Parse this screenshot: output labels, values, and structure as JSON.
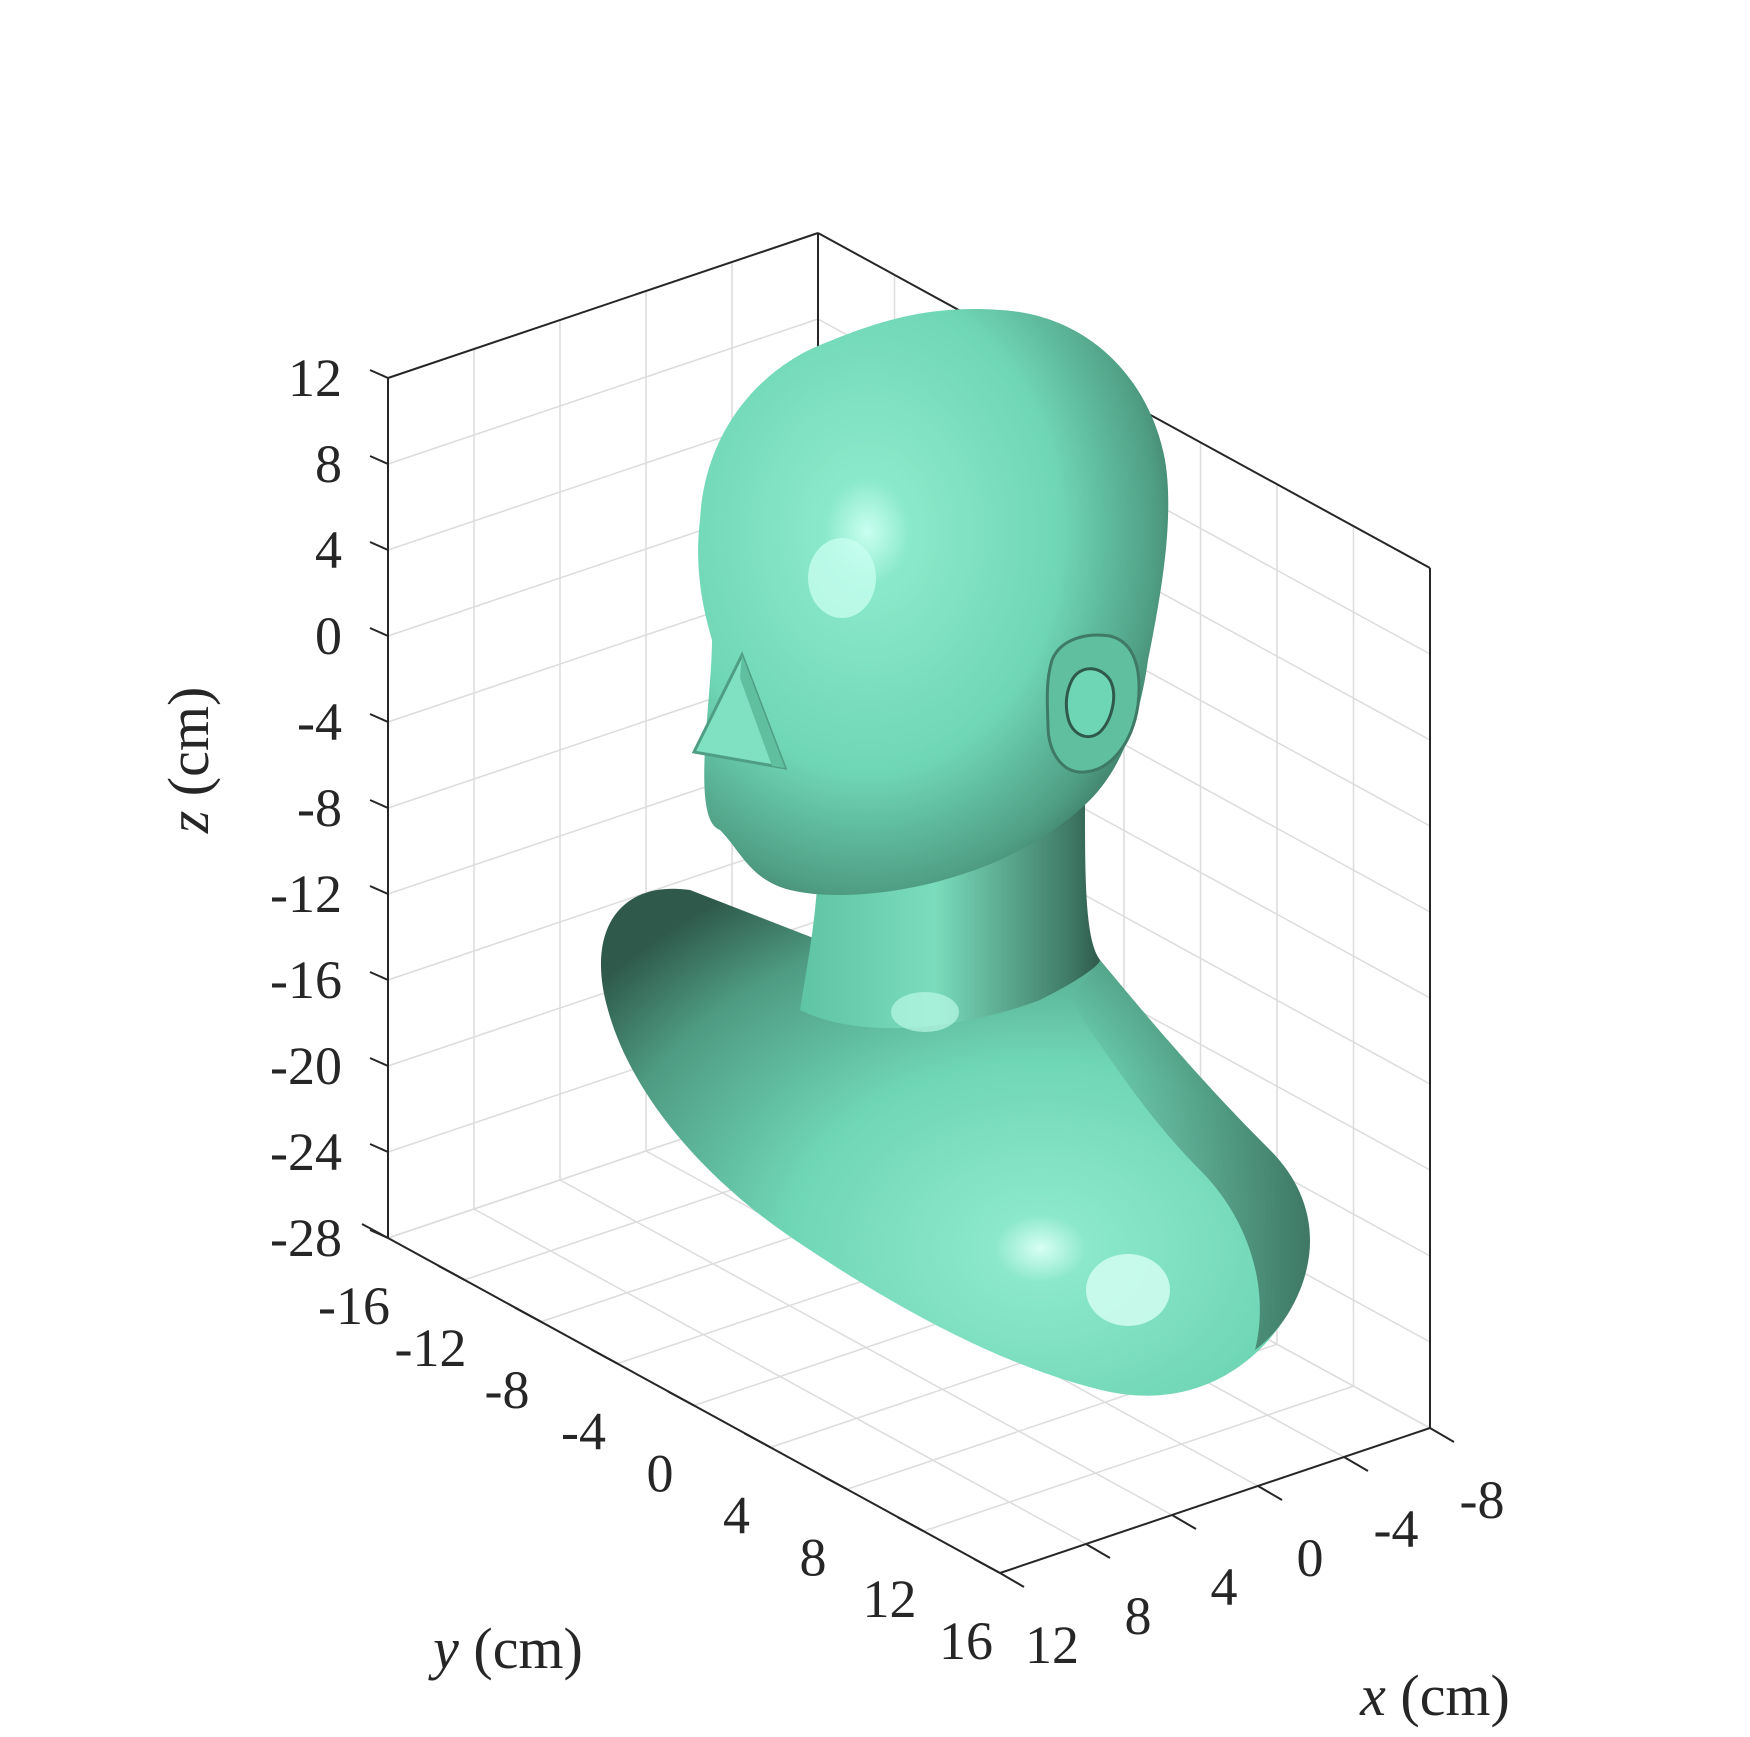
{
  "chart_data": {
    "type": "3d-surface",
    "xlabel": {
      "var": "x",
      "unit": " (cm)"
    },
    "ylabel": {
      "var": "y",
      "unit": " (cm)"
    },
    "zlabel": {
      "var": "z",
      "unit": " (cm)"
    },
    "x_ticks": [
      "-8",
      "-4",
      "0",
      "4",
      "8",
      "12"
    ],
    "y_ticks": [
      "-16",
      "-12",
      "-8",
      "-4",
      "0",
      "4",
      "8",
      "12",
      "16"
    ],
    "z_ticks": [
      "12",
      "8",
      "4",
      "0",
      "-4",
      "-8",
      "-12",
      "-16",
      "-20",
      "-24",
      "-28"
    ],
    "x_range": [
      -8,
      12
    ],
    "y_range": [
      -16,
      16
    ],
    "z_range": [
      -28,
      12
    ],
    "grid": true,
    "surface_color": "#6fd6b5",
    "surface_shadow_color": "#2f5a4b",
    "surface_highlight_color": "#c9fff0",
    "grid_color": "#dcdcdc",
    "axis_color": "#262626"
  }
}
